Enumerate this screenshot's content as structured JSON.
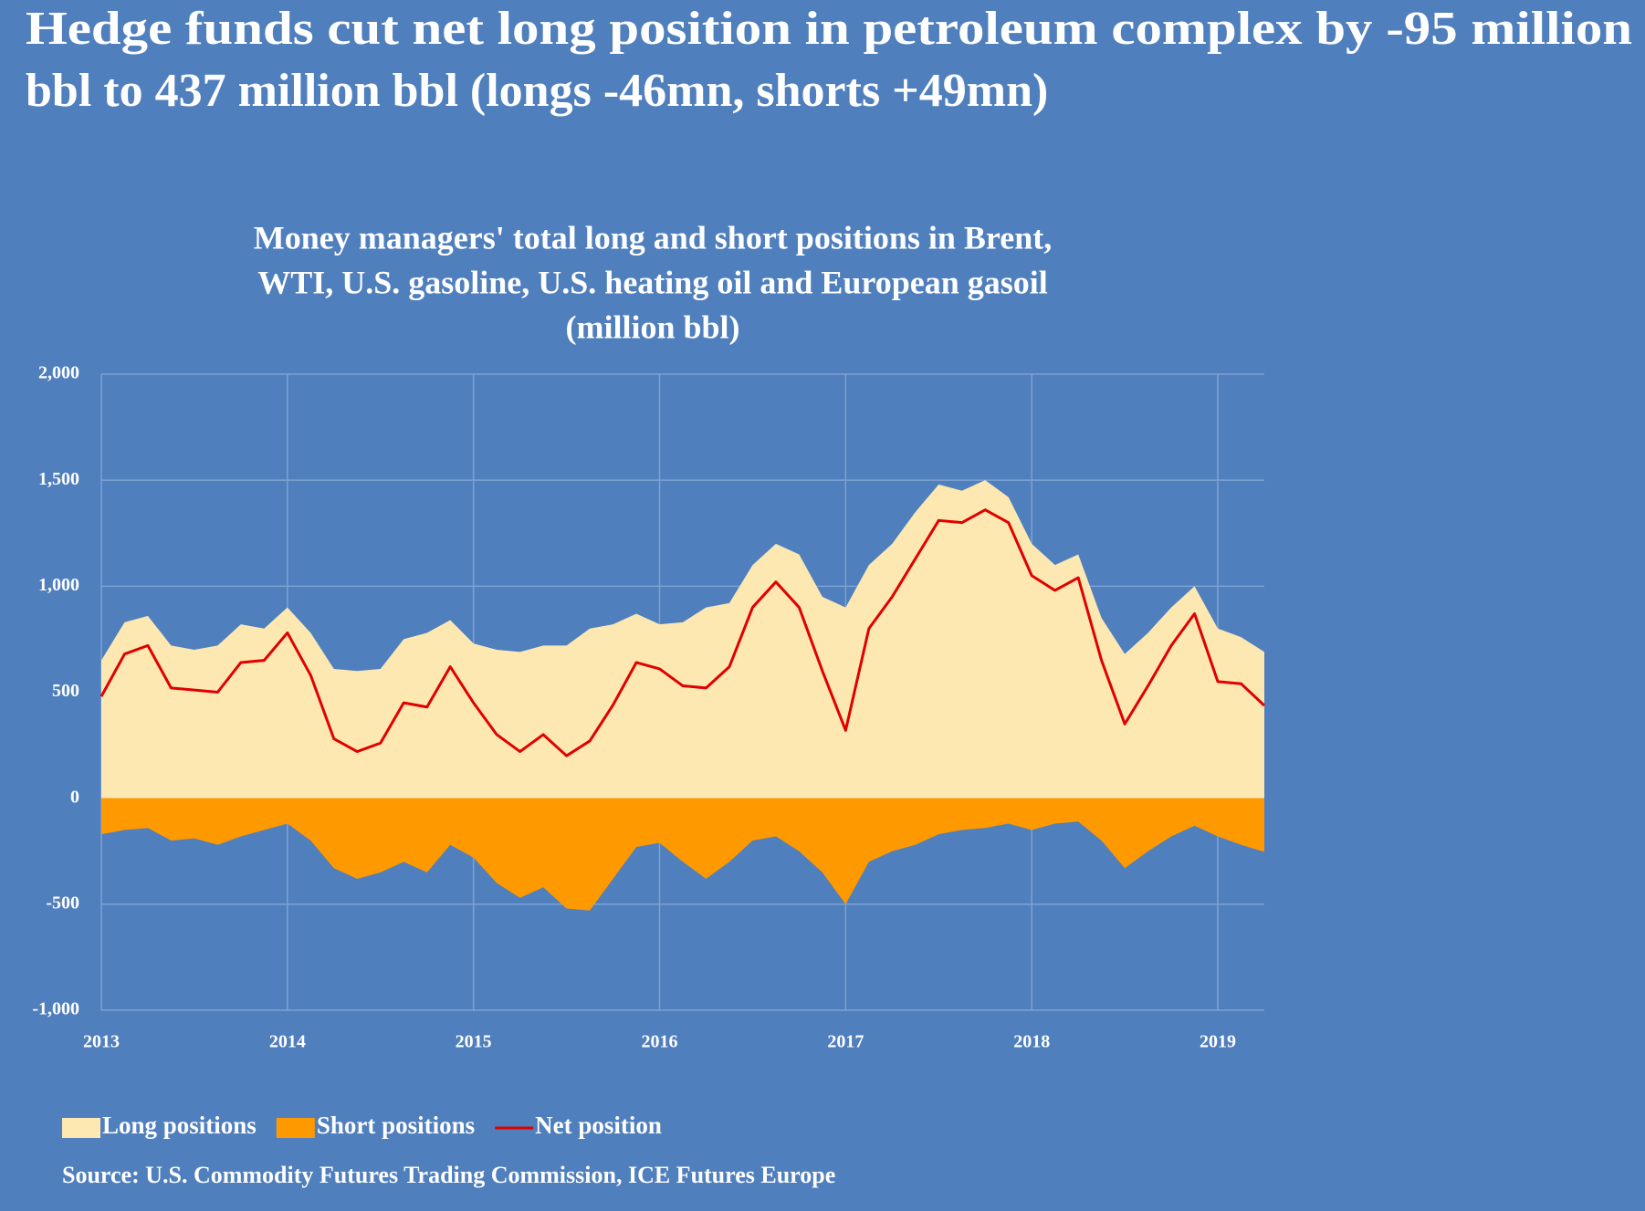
{
  "chart_data": {
    "type": "area",
    "title": [
      "Hedge funds cut net long position in petroleum complex by -95 million",
      "bbl to 437 million bbl (longs -46mn, shorts +49mn)"
    ],
    "subtitle": [
      "Money managers' total long and short positions in Brent,",
      "WTI, U.S. gasoline, U.S. heating oil and European gasoil",
      "(million bbl)"
    ],
    "source": "Source: U.S. Commodity Futures Trading Commission, ICE Futures Europe",
    "x": [
      2013,
      2013.125,
      2013.25,
      2013.375,
      2013.5,
      2013.625,
      2013.75,
      2013.875,
      2014,
      2014.125,
      2014.25,
      2014.375,
      2014.5,
      2014.625,
      2014.75,
      2014.875,
      2015,
      2015.125,
      2015.25,
      2015.375,
      2015.5,
      2015.625,
      2015.75,
      2015.875,
      2016,
      2016.125,
      2016.25,
      2016.375,
      2016.5,
      2016.625,
      2016.75,
      2016.875,
      2017,
      2017.125,
      2017.25,
      2017.375,
      2017.5,
      2017.625,
      2017.75,
      2017.875,
      2018,
      2018.125,
      2018.25,
      2018.375,
      2018.5,
      2018.625,
      2018.75,
      2018.875,
      2019,
      2019.125,
      2019.25
    ],
    "series": [
      {
        "name": "Long positions",
        "type": "area",
        "color": "#fde8b2",
        "values": [
          650,
          830,
          860,
          720,
          700,
          720,
          820,
          800,
          900,
          780,
          610,
          600,
          610,
          750,
          780,
          840,
          730,
          700,
          690,
          720,
          720,
          800,
          820,
          870,
          820,
          830,
          900,
          920,
          1100,
          1200,
          1150,
          950,
          900,
          1100,
          1200,
          1350,
          1480,
          1450,
          1500,
          1420,
          1200,
          1100,
          1150,
          850,
          680,
          780,
          900,
          1000,
          800,
          760,
          690
        ]
      },
      {
        "name": "Short positions",
        "type": "area",
        "color": "#ff9900",
        "values": [
          -170,
          -150,
          -140,
          -200,
          -190,
          -220,
          -180,
          -150,
          -120,
          -200,
          -330,
          -380,
          -350,
          -300,
          -350,
          -220,
          -280,
          -400,
          -470,
          -420,
          -520,
          -530,
          -380,
          -230,
          -210,
          -300,
          -380,
          -300,
          -200,
          -180,
          -250,
          -350,
          -500,
          -300,
          -250,
          -220,
          -170,
          -150,
          -140,
          -120,
          -150,
          -120,
          -110,
          -200,
          -330,
          -250,
          -180,
          -130,
          -180,
          -220,
          -253
        ]
      },
      {
        "name": "Net position",
        "type": "line",
        "color": "#e00000",
        "values": [
          480,
          680,
          720,
          520,
          510,
          500,
          640,
          650,
          780,
          580,
          280,
          220,
          260,
          450,
          430,
          620,
          450,
          300,
          220,
          300,
          200,
          270,
          440,
          640,
          610,
          530,
          520,
          620,
          900,
          1020,
          900,
          600,
          320,
          800,
          950,
          1130,
          1310,
          1300,
          1360,
          1300,
          1050,
          980,
          1040,
          650,
          350,
          530,
          720,
          870,
          550,
          540,
          437
        ]
      }
    ],
    "xlim": [
      2013,
      2019.25
    ],
    "xticks": [
      2013,
      2014,
      2015,
      2016,
      2017,
      2018,
      2019
    ],
    "ylim": [
      -1000,
      2000
    ],
    "yticks": [
      {
        "value": -1000,
        "label": "-1,000"
      },
      -500,
      0,
      500,
      {
        "value": 1000,
        "label": "1,000"
      },
      {
        "value": 1500,
        "label": "1,500"
      },
      {
        "value": 2000,
        "label": "2,000"
      }
    ],
    "grid": true
  }
}
